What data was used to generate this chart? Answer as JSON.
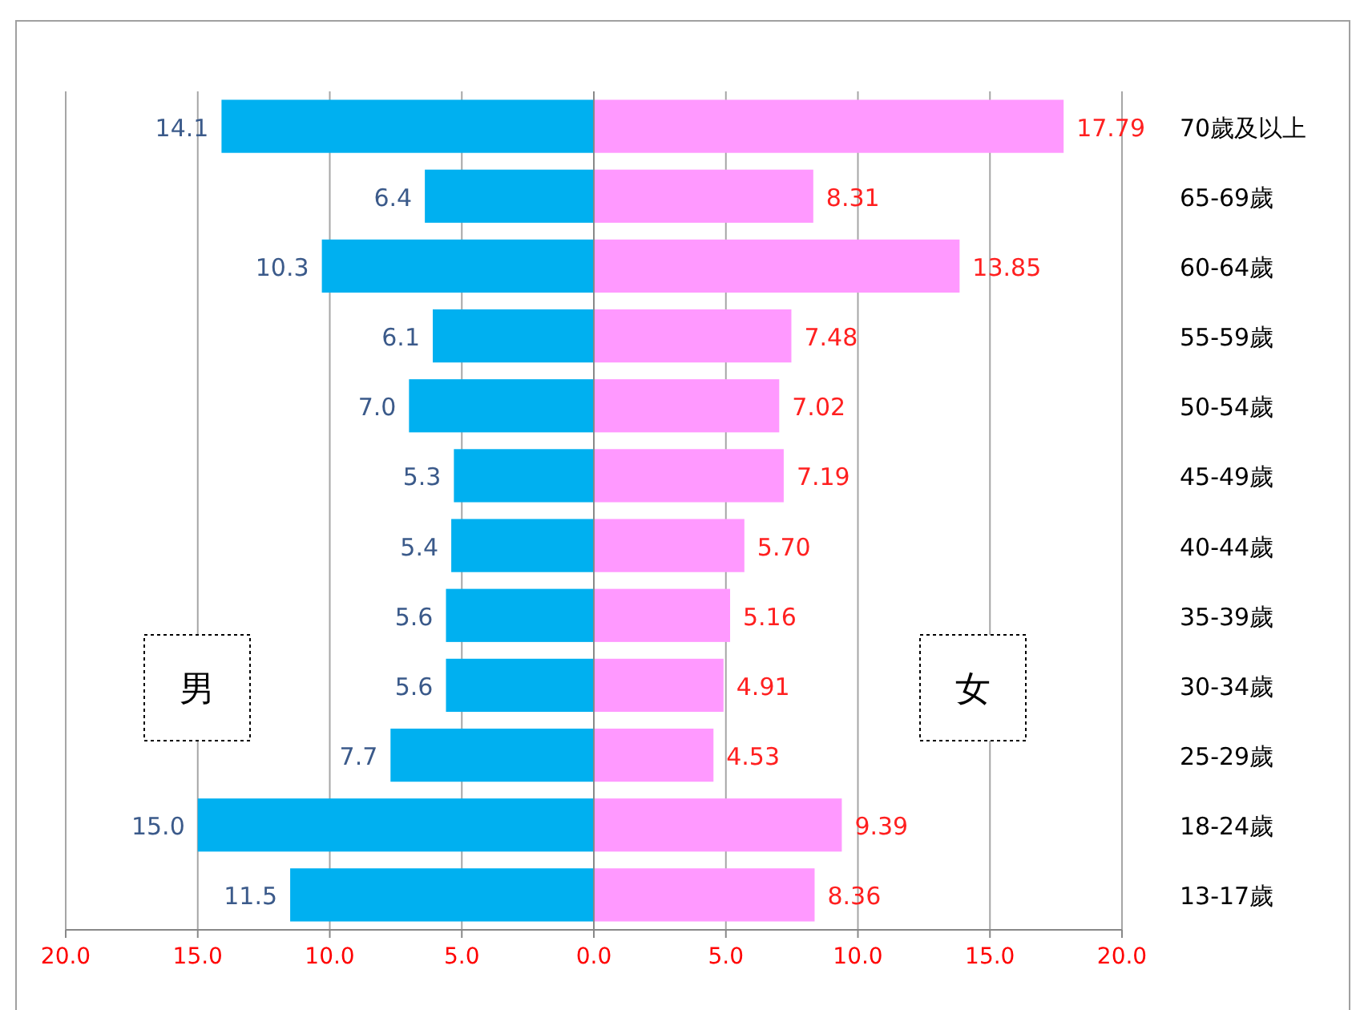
{
  "chart_data": {
    "type": "bar",
    "orientation": "horizontal",
    "categories": [
      "70歲及以上",
      "65-69歲",
      "60-64歲",
      "55-59歲",
      "50-54歲",
      "45-49歲",
      "40-44歲",
      "35-39歲",
      "30-34歲",
      "25-29歲",
      "18-24歲",
      "13-17歲"
    ],
    "series": [
      {
        "color": "#00b0f0",
        "base": [
          -14.1,
          -6.4,
          -10.3,
          -6.1,
          -7.0,
          -5.3,
          -5.4,
          -5.6,
          -5.6,
          -7.7,
          -15.0,
          -11.5
        ],
        "values": [
          14.1,
          6.4,
          10.3,
          6.1,
          7.0,
          5.3,
          5.4,
          5.6,
          5.6,
          7.7,
          15.0,
          11.5
        ],
        "value_labels": [
          "14.1",
          "6.4",
          "10.3",
          "6.1",
          "7.0",
          "5.3",
          "5.4",
          "5.6",
          "5.6",
          "7.7",
          "15.0",
          "11.5"
        ]
      },
      {
        "color": "#ff99ff",
        "values": [
          17.79,
          8.31,
          13.85,
          7.48,
          7.02,
          7.19,
          5.7,
          5.16,
          4.91,
          4.53,
          9.39,
          8.36
        ],
        "value_labels": [
          "17.79",
          "8.31",
          "13.85",
          "7.48",
          "7.02",
          "7.19",
          "5.70",
          "5.16",
          "4.91",
          "4.53",
          "9.39",
          "8.36"
        ]
      }
    ],
    "xlim": [
      -20,
      20
    ],
    "xticks": [
      {
        "value": -20,
        "label": "20.0"
      },
      {
        "value": -15,
        "label": "15.0"
      },
      {
        "value": -10,
        "label": "10.0"
      },
      {
        "value": -5,
        "label": "5.0"
      },
      {
        "value": 0,
        "label": "0.0"
      },
      {
        "value": 5,
        "label": "5.0"
      },
      {
        "value": 10,
        "label": "10.0"
      },
      {
        "value": 15,
        "label": "15.0"
      },
      {
        "value": 20,
        "label": "20.0"
      }
    ],
    "grid": "x",
    "annotations": [
      "男",
      "女"
    ]
  }
}
